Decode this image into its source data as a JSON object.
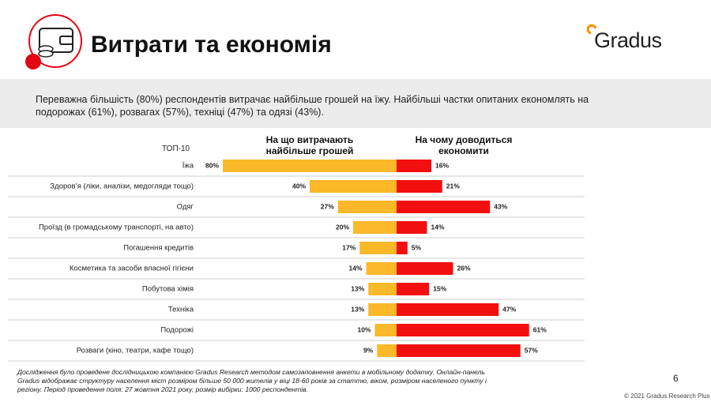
{
  "header": {
    "title": "Витрати та економія",
    "logo": "Gradus"
  },
  "summary": "Переважна більшість (80%) респондентів витрачає найбільше грошей на їжу. Найбільші частки опитаних економлять на подорожах (61%), розвагах (57%), техніці (47%) та одязі (43%).",
  "chart_data": {
    "type": "butterfly",
    "category_header": "ТОП-10",
    "categories": [
      "Їжа",
      "Здоров’я (ліки, аналізи, медогляди тощо)",
      "Одяг",
      "Проїзд (в громадському транспорті, на авто)",
      "Погашення кредитів",
      "Косметика та засоби власної гігієни",
      "Побутова хімія",
      "Техніка",
      "Подорожі",
      "Розваги (кіно, театри, кафе тощо)"
    ],
    "series": [
      {
        "name": "На що витрачають найбільше грошей",
        "color": "#fbb829",
        "values": [
          80,
          40,
          27,
          20,
          17,
          14,
          13,
          13,
          10,
          9
        ],
        "value_labels": [
          "80%",
          "40%",
          "27%",
          "20%",
          "17%",
          "14%",
          "13%",
          "13%",
          "10%",
          "9%"
        ]
      },
      {
        "name": "На чому доводиться економити",
        "color": "#f20f0f",
        "values": [
          16,
          21,
          43,
          14,
          5,
          26,
          15,
          47,
          61,
          57
        ],
        "value_labels": [
          "16%",
          "21%",
          "43%",
          "14%",
          "5%",
          "26%",
          "15%",
          "47%",
          "61%",
          "57%"
        ]
      }
    ]
  },
  "footnote": "Дослідження було проведене дослідницькою компанією Gradus Research методом самозаповнення анкети в мобільному додатку. Онлайн-панель Gradus відображає структуру населення міст розміром більше 50 000 жителів у віці 18-60 років за статтю, віком, розміром населеного пункту і регіону. Період проведення поля: 27 жовтня 2021 року, розмір вибірки: 1000 респондентів.",
  "page_number": "6",
  "copyright": "© 2021 Gradus Research Plus"
}
